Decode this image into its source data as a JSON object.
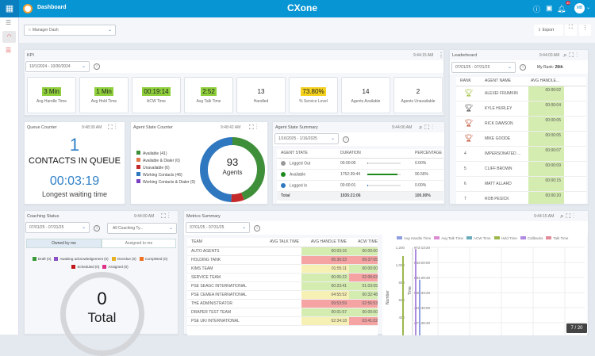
{
  "header": {
    "title": "Dashboard",
    "logo": "CXone",
    "logo_sub": "Mpower",
    "notif_count": "30",
    "avatar": "MB"
  },
  "toolbar": {
    "dashboard_select": "Manager Dash",
    "export": "Export"
  },
  "kpi": {
    "title": "KPI",
    "time": "9:44:15 AM",
    "date_range": "10/1/2024 - 10/30/2024",
    "cards": [
      {
        "value": "3 Min",
        "label": "Avg Handle Time",
        "hl": "#8fcf3c"
      },
      {
        "value": "1 Min",
        "label": "Avg Hold Time",
        "hl": "#8fcf3c"
      },
      {
        "value": "00:19:14",
        "label": "ACW Time",
        "hl": "#8fcf3c"
      },
      {
        "value": "2:52",
        "label": "Avg Talk Time",
        "hl": "#8fcf3c"
      },
      {
        "value": "13",
        "label": "Handled",
        "hl": ""
      },
      {
        "value": "73.80%",
        "label": "% Service Level",
        "hl": "#f5d21e"
      },
      {
        "value": "14",
        "label": "Agents Available",
        "hl": ""
      },
      {
        "value": "2",
        "label": "Agents Unavailable",
        "hl": ""
      }
    ]
  },
  "leaderboard": {
    "title": "Leaderboard",
    "time": "9:44:03 AM",
    "date_range": "07/01/25 - 07/31/25",
    "my_rank_label": "My Rank:",
    "my_rank": "28th",
    "columns": [
      "RANK",
      "AGENT NAME",
      "AVG HANDLE..."
    ],
    "rows": [
      {
        "rank": "1",
        "trophy": "#9fbf3a",
        "name": "ALEXEI FRUMKIN",
        "value": "00:00:02"
      },
      {
        "rank": "2",
        "trophy": "#555",
        "name": "KYLE HURLEY",
        "value": "00:00:04"
      },
      {
        "rank": "3",
        "trophy": "#c0563a",
        "name": "RICK DAWSON",
        "value": "00:00:05"
      },
      {
        "rank": "3",
        "trophy": "#c0563a",
        "name": "MIKE GOODE",
        "value": "00:00:05"
      },
      {
        "rank": "4",
        "name": "IMPERSONATED ...",
        "value": "00:00:07"
      },
      {
        "rank": "5",
        "name": "CLIFF BROWN",
        "value": "00:00:09"
      },
      {
        "rank": "6",
        "name": "MATT ALLARD",
        "value": "00:00:15"
      },
      {
        "rank": "7",
        "name": "ROB PESICK",
        "value": "00:00:20"
      }
    ]
  },
  "queue": {
    "title": "Queue Counter",
    "time": "9:48:39 AM",
    "count": "1",
    "count_label": "CONTACTS IN QUEUE",
    "wait": "00:03:19",
    "wait_label": "Longest waiting time"
  },
  "agent_state": {
    "title": "Agent State Counter",
    "time": "9:48:42 AM",
    "total": "93",
    "total_label": "Agents",
    "legend": [
      {
        "label": "Available (41)",
        "color": "#3f8f3a",
        "value": 41
      },
      {
        "label": "Available & Dialer (0)",
        "color": "#e07a4a",
        "value": 0
      },
      {
        "label": "Unavailable (6)",
        "color": "#c42a2a",
        "value": 6
      },
      {
        "label": "Working Contacts (46)",
        "color": "#2f78c0",
        "value": 46
      },
      {
        "label": "Working Contacts & Dialer (0)",
        "color": "#7b3fc4",
        "value": 0
      }
    ]
  },
  "state_summary": {
    "title": "Agent State Summary",
    "time": "9:44:00 AM",
    "date_range": "1/16/2025 - 1/16/2025",
    "columns": [
      "AGENT STATE",
      "DURATION",
      "PERCENTAGE"
    ],
    "rows": [
      {
        "state": "Logged Out",
        "color": "#999",
        "duration": "00:00:00",
        "pct": "0.00%",
        "frac": 0.01
      },
      {
        "state": "Available",
        "color": "#1e8a1e",
        "duration": "1752:39:44",
        "pct": "90.56%",
        "frac": 0.9056
      },
      {
        "state": "Logged In",
        "color": "#2f78c0",
        "duration": "00:00:01",
        "pct": "0.00%",
        "frac": 0.01
      }
    ],
    "total_label": "Total",
    "total_duration": "1935:21:06",
    "total_pct": "100.00%"
  },
  "coaching": {
    "title": "Coaching Status",
    "time": "9:44:00 AM",
    "date_range": "07/01/25 - 07/31/25",
    "type_select": "All Coaching Ty...",
    "tabs": [
      "Owned by me",
      "Assigned to me"
    ],
    "legend": [
      {
        "label": "Draft (0)",
        "color": "#3a9a3a"
      },
      {
        "label": "Awaiting acknowledgement (0)",
        "color": "#8a4fc4"
      },
      {
        "label": "Overdue (0)",
        "color": "#e6b020"
      },
      {
        "label": "Completed (0)",
        "color": "#f07020"
      },
      {
        "label": "Scheduled (0)",
        "color": "#c01818"
      },
      {
        "label": "Assigned (0)",
        "color": "#e0308a"
      }
    ],
    "total": "0",
    "total_label": "Total"
  },
  "metrics": {
    "title": "Metrics Summary",
    "time": "9:44:15 AM",
    "date_range": "07/01/25 - 07/31/25",
    "columns": [
      "TEAM",
      "AVG TALK TIME",
      "AVG HANDLE TIME",
      "ACW TIME"
    ],
    "rows": [
      {
        "team": "AUTO AGENTS",
        "aht": "00:03:16",
        "ac": "g",
        "acw": "00:00:00",
        "wc": "g"
      },
      {
        "team": "HOLDING TANK",
        "aht": "05:36:33",
        "ac": "r",
        "acw": "09:37:05",
        "wc": "r"
      },
      {
        "team": "KIMS TEAM",
        "aht": "01:55:11",
        "ac": "y",
        "acw": "00:00:00",
        "wc": "g"
      },
      {
        "team": "SERVICE TEAM",
        "aht": "00:05:22",
        "ac": "g",
        "acw": "02:06:03",
        "wc": "r"
      },
      {
        "team": "PSE SEAGC INTERNATIONAL",
        "aht": "00:23:41",
        "ac": "g",
        "acw": "01:03:05",
        "wc": "g"
      },
      {
        "team": "PSE CEMEA INTERNATIONAL",
        "aht": "04:55:52",
        "ac": "y",
        "acw": "00:32:48",
        "wc": "g"
      },
      {
        "team": "THE ADMINISTRATOR",
        "aht": "09:53:59",
        "ac": "r",
        "acw": "02:56:53",
        "wc": "r"
      },
      {
        "team": "DRAPER TEST TEAM",
        "aht": "00:01:57",
        "ac": "g",
        "acw": "00:00:00",
        "wc": "g"
      },
      {
        "team": "PSE UKI INTERNATIONAL",
        "aht": "02:34:18",
        "ac": "y",
        "acw": "03:41:02",
        "wc": "r"
      }
    ],
    "chart": {
      "legend": [
        {
          "label": "Avg Handle Time",
          "color": "#8e9ee0"
        },
        {
          "label": "Avg Talk Time",
          "color": "#d98ad0"
        },
        {
          "label": "ACW Time",
          "color": "#6aaabb"
        },
        {
          "label": "Hold Time",
          "color": "#9cb84a"
        },
        {
          "label": "Callbacks",
          "color": "#b08ae0"
        },
        {
          "label": "Talk Time",
          "color": "#e08a9a"
        }
      ],
      "y1_label": "Number",
      "y1_ticks": [
        "1,200",
        "1,000",
        "800",
        "600",
        "400"
      ],
      "y2_label": "Time",
      "y2_ticks": [
        "972:13:20",
        "833:20:00",
        "694:26:40",
        "555:33:20",
        "416:40:00",
        "277:46:40"
      ],
      "bars": [
        {
          "series": "Hold Time",
          "value": 1100
        },
        {
          "series": "Callbacks",
          "value": 1180
        },
        {
          "series": "Avg Handle Time",
          "value": 830
        }
      ]
    }
  },
  "pager": "7 / 20"
}
